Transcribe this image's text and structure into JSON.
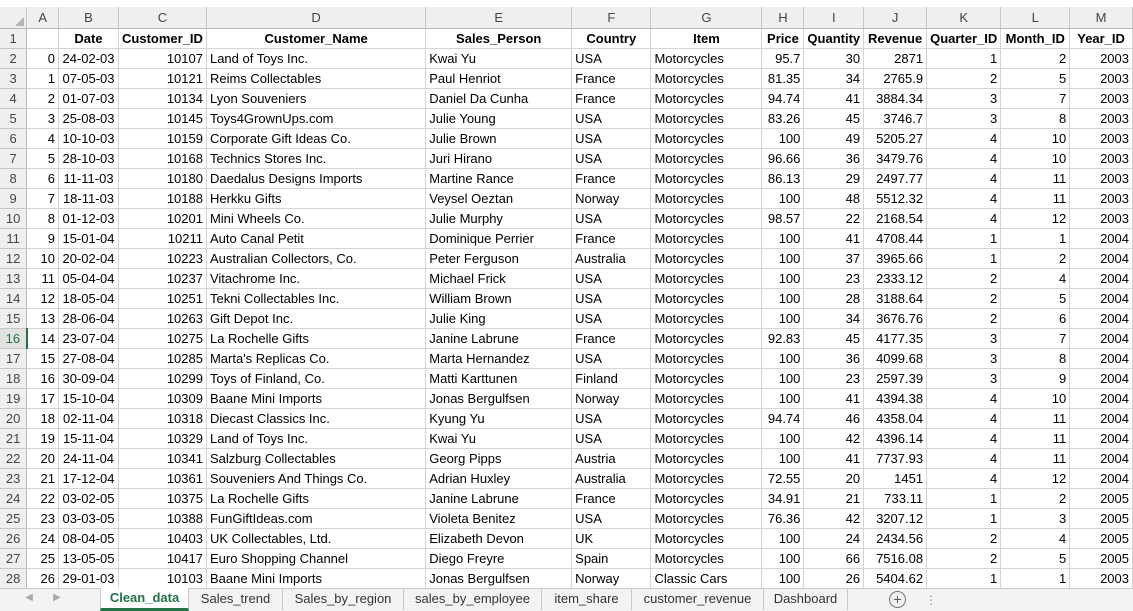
{
  "columns": [
    "A",
    "B",
    "C",
    "D",
    "E",
    "F",
    "G",
    "H",
    "I",
    "J",
    "K",
    "L",
    "M"
  ],
  "headers": [
    "",
    "Date",
    "Customer_ID",
    "Customer_Name",
    "Sales_Person",
    "Country",
    "Item",
    "Price",
    "Quantity",
    "Revenue",
    "Quarter_ID",
    "Month_ID",
    "Year_ID"
  ],
  "rows": [
    [
      "0",
      "24-02-03",
      "10107",
      "Land of Toys Inc.",
      "Kwai Yu",
      "USA",
      "Motorcycles",
      "95.7",
      "30",
      "2871",
      "1",
      "2",
      "2003"
    ],
    [
      "1",
      "07-05-03",
      "10121",
      "Reims Collectables",
      "Paul Henriot",
      "France",
      "Motorcycles",
      "81.35",
      "34",
      "2765.9",
      "2",
      "5",
      "2003"
    ],
    [
      "2",
      "01-07-03",
      "10134",
      "Lyon Souveniers",
      "Daniel Da Cunha",
      "France",
      "Motorcycles",
      "94.74",
      "41",
      "3884.34",
      "3",
      "7",
      "2003"
    ],
    [
      "3",
      "25-08-03",
      "10145",
      "Toys4GrownUps.com",
      "Julie Young",
      "USA",
      "Motorcycles",
      "83.26",
      "45",
      "3746.7",
      "3",
      "8",
      "2003"
    ],
    [
      "4",
      "10-10-03",
      "10159",
      "Corporate Gift Ideas Co.",
      "Julie Brown",
      "USA",
      "Motorcycles",
      "100",
      "49",
      "5205.27",
      "4",
      "10",
      "2003"
    ],
    [
      "5",
      "28-10-03",
      "10168",
      "Technics Stores Inc.",
      "Juri Hirano",
      "USA",
      "Motorcycles",
      "96.66",
      "36",
      "3479.76",
      "4",
      "10",
      "2003"
    ],
    [
      "6",
      "11-11-03",
      "10180",
      "Daedalus Designs Imports",
      "Martine Rance",
      "France",
      "Motorcycles",
      "86.13",
      "29",
      "2497.77",
      "4",
      "11",
      "2003"
    ],
    [
      "7",
      "18-11-03",
      "10188",
      "Herkku Gifts",
      "Veysel Oeztan",
      "Norway",
      "Motorcycles",
      "100",
      "48",
      "5512.32",
      "4",
      "11",
      "2003"
    ],
    [
      "8",
      "01-12-03",
      "10201",
      "Mini Wheels Co.",
      "Julie Murphy",
      "USA",
      "Motorcycles",
      "98.57",
      "22",
      "2168.54",
      "4",
      "12",
      "2003"
    ],
    [
      "9",
      "15-01-04",
      "10211",
      "Auto Canal Petit",
      "Dominique Perrier",
      "France",
      "Motorcycles",
      "100",
      "41",
      "4708.44",
      "1",
      "1",
      "2004"
    ],
    [
      "10",
      "20-02-04",
      "10223",
      "Australian Collectors, Co.",
      "Peter Ferguson",
      "Australia",
      "Motorcycles",
      "100",
      "37",
      "3965.66",
      "1",
      "2",
      "2004"
    ],
    [
      "11",
      "05-04-04",
      "10237",
      "Vitachrome Inc.",
      "Michael Frick",
      "USA",
      "Motorcycles",
      "100",
      "23",
      "2333.12",
      "2",
      "4",
      "2004"
    ],
    [
      "12",
      "18-05-04",
      "10251",
      "Tekni Collectables Inc.",
      "William Brown",
      "USA",
      "Motorcycles",
      "100",
      "28",
      "3188.64",
      "2",
      "5",
      "2004"
    ],
    [
      "13",
      "28-06-04",
      "10263",
      "Gift Depot Inc.",
      "Julie King",
      "USA",
      "Motorcycles",
      "100",
      "34",
      "3676.76",
      "2",
      "6",
      "2004"
    ],
    [
      "14",
      "23-07-04",
      "10275",
      "La Rochelle Gifts",
      "Janine Labrune",
      "France",
      "Motorcycles",
      "92.83",
      "45",
      "4177.35",
      "3",
      "7",
      "2004"
    ],
    [
      "15",
      "27-08-04",
      "10285",
      "Marta's Replicas Co.",
      "Marta Hernandez",
      "USA",
      "Motorcycles",
      "100",
      "36",
      "4099.68",
      "3",
      "8",
      "2004"
    ],
    [
      "16",
      "30-09-04",
      "10299",
      "Toys of Finland, Co.",
      "Matti Karttunen",
      "Finland",
      "Motorcycles",
      "100",
      "23",
      "2597.39",
      "3",
      "9",
      "2004"
    ],
    [
      "17",
      "15-10-04",
      "10309",
      "Baane Mini Imports",
      "Jonas Bergulfsen",
      "Norway",
      "Motorcycles",
      "100",
      "41",
      "4394.38",
      "4",
      "10",
      "2004"
    ],
    [
      "18",
      "02-11-04",
      "10318",
      "Diecast Classics Inc.",
      "Kyung Yu",
      "USA",
      "Motorcycles",
      "94.74",
      "46",
      "4358.04",
      "4",
      "11",
      "2004"
    ],
    [
      "19",
      "15-11-04",
      "10329",
      "Land of Toys Inc.",
      "Kwai Yu",
      "USA",
      "Motorcycles",
      "100",
      "42",
      "4396.14",
      "4",
      "11",
      "2004"
    ],
    [
      "20",
      "24-11-04",
      "10341",
      "Salzburg Collectables",
      "Georg Pipps",
      "Austria",
      "Motorcycles",
      "100",
      "41",
      "7737.93",
      "4",
      "11",
      "2004"
    ],
    [
      "21",
      "17-12-04",
      "10361",
      "Souveniers And Things Co.",
      "Adrian Huxley",
      "Australia",
      "Motorcycles",
      "72.55",
      "20",
      "1451",
      "4",
      "12",
      "2004"
    ],
    [
      "22",
      "03-02-05",
      "10375",
      "La Rochelle Gifts",
      "Janine Labrune",
      "France",
      "Motorcycles",
      "34.91",
      "21",
      "733.11",
      "1",
      "2",
      "2005"
    ],
    [
      "23",
      "03-03-05",
      "10388",
      "FunGiftIdeas.com",
      "Violeta Benitez",
      "USA",
      "Motorcycles",
      "76.36",
      "42",
      "3207.12",
      "1",
      "3",
      "2005"
    ],
    [
      "24",
      "08-04-05",
      "10403",
      "UK Collectables, Ltd.",
      "Elizabeth Devon",
      "UK",
      "Motorcycles",
      "100",
      "24",
      "2434.56",
      "2",
      "4",
      "2005"
    ],
    [
      "25",
      "13-05-05",
      "10417",
      "Euro Shopping Channel",
      "Diego Freyre",
      "Spain",
      "Motorcycles",
      "100",
      "66",
      "7516.08",
      "2",
      "5",
      "2005"
    ],
    [
      "26",
      "29-01-03",
      "10103",
      "Baane Mini Imports",
      "Jonas Bergulfsen",
      "Norway",
      "Classic Cars",
      "100",
      "26",
      "5404.62",
      "1",
      "1",
      "2003"
    ]
  ],
  "selected_row": 16,
  "tabs": [
    "Clean_data",
    "Sales_trend",
    "Sales_by_region",
    "sales_by_employee",
    "item_share",
    "customer_revenue",
    "Dashboard"
  ],
  "active_tab": "Clean_data",
  "nav": {
    "prev": "◀",
    "next": "▶",
    "add": "+",
    "dots": "⋮"
  }
}
